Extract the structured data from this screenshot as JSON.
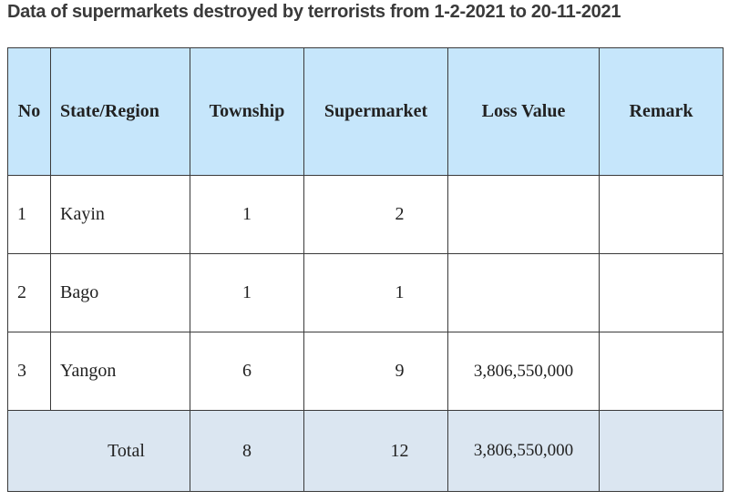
{
  "title": "Data of supermarkets destroyed by terrorists from 1-2-2021 to 20-11-2021",
  "table": {
    "headers": {
      "no": "No",
      "state_region": "State/Region",
      "township": "Township",
      "supermarket": "Supermarket",
      "loss_value": "Loss Value",
      "remark": "Remark"
    },
    "rows": [
      {
        "no": "1",
        "state_region": "Kayin",
        "township": "1",
        "supermarket": "2",
        "loss_value": "",
        "remark": ""
      },
      {
        "no": "2",
        "state_region": "Bago",
        "township": "1",
        "supermarket": "1",
        "loss_value": "",
        "remark": ""
      },
      {
        "no": "3",
        "state_region": "Yangon",
        "township": "6",
        "supermarket": "9",
        "loss_value": "3,806,550,000",
        "remark": ""
      }
    ],
    "total": {
      "label": "Total",
      "township": "8",
      "supermarket": "12",
      "loss_value": "3,806,550,000",
      "remark": ""
    }
  },
  "colors": {
    "header_bg": "#c6e6fb",
    "total_bg": "#dbe6f1",
    "border": "#3a3a3a"
  }
}
